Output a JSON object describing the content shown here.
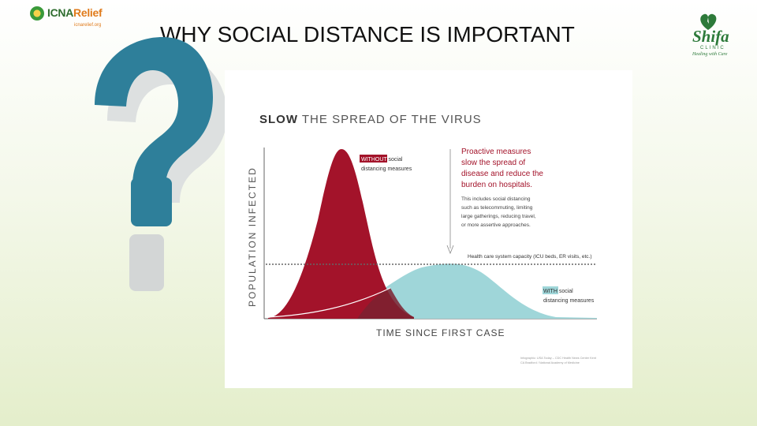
{
  "left_logo": {
    "brand_main": "ICNA",
    "brand_accent": "Relief",
    "tagline": "icnarelief.org"
  },
  "slide_title": "WHY SOCIAL DISTANCE IS IMPORTANT",
  "right_logo": {
    "name": "Shifa",
    "subtitle": "CLINIC",
    "slogan": "Healing with Care"
  },
  "decoration": {
    "icon": "question-mark-icon",
    "color": "#2e7f9a"
  },
  "infographic": {
    "title_bold": "SLOW",
    "title_rest": " THE SPREAD OF THE VIRUS",
    "y_axis_label": "POPULATION INFECTED",
    "x_axis_label": "TIME SINCE FIRST CASE",
    "without": {
      "highlight": "WITHOUT",
      "rest": " social",
      "line2": "distancing measures",
      "color": "#a3132a"
    },
    "with": {
      "highlight": "WITH",
      "rest": " social",
      "line2": "distancing measures",
      "color": "#9fd6d9"
    },
    "callout_heading": [
      "Proactive measures",
      "slow the spread of",
      "disease and reduce the",
      "burden on hospitals."
    ],
    "callout_body": [
      "This includes social distancing",
      "such as telecommuting, limiting",
      "large gatherings, reducing travel,",
      "or more assertive approaches."
    ],
    "capacity_label": "Health care system capacity (ICU beds, ER visits, etc.)",
    "source": [
      "Infographic: USA Today – CDC Health News Center Kent",
      "CA Bradford / National Academy of Medicine"
    ]
  }
}
